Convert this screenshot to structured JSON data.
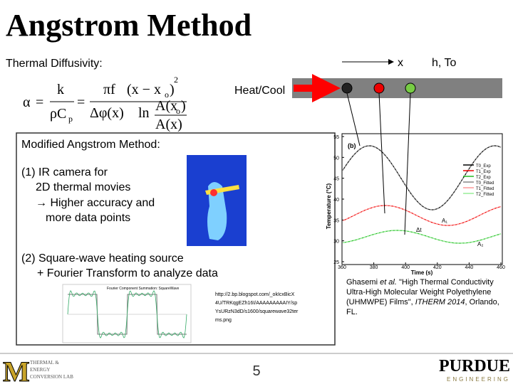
{
  "title": "Angstrom Method",
  "thermal_diffusivity": {
    "label": "Thermal Diffusivity:",
    "formula": {
      "alpha": "α",
      "eq1": "=",
      "k": "k",
      "rho_c": "ρC",
      "sub_p": "p",
      "eq2": "=",
      "pi_f": "πf",
      "num_x": "(x − x",
      "num_sub": "o",
      "num_close": ")",
      "num_sup": "2",
      "delta_phi": "Δφ(x)",
      "ln": "ln",
      "a_xo": "A(x",
      "a_sub": "o",
      "a_close": ")",
      "a_x": "A(x)"
    }
  },
  "diagram": {
    "x_label": "x",
    "boundary_label": "h, To",
    "heat_label": "Heat/Cool"
  },
  "box": {
    "heading": "Modified Angstrom Method:",
    "point1": [
      "(1) IR camera for",
      "2D thermal movies",
      "→ Higher accuracy and",
      "more data points"
    ],
    "point2": [
      "(2) Square-wave heating source",
      "+ Fourier Transform to analyze data"
    ],
    "fourier_title": "Fourier Component Summation: SquareWave",
    "url": [
      "http://2.bp.blogspot.com/_okIcxBicX",
      "4U/TRKqgEZh16I/AAAAAAAAAIY/sp",
      "YsURzN3dD/s1600/squarewave32ter",
      "ms.png"
    ]
  },
  "plot": {
    "panel": "(b)",
    "y_label": "Temperature (°C)",
    "x_label": "Time (s)",
    "yticks": [
      "55",
      "50",
      "45",
      "40",
      "35",
      "30",
      "25"
    ],
    "xticks": [
      "360",
      "380",
      "400",
      "420",
      "440",
      "460"
    ],
    "legend": [
      "T0_Exp",
      "T1_Exp",
      "T2_Exp",
      "T0_Fitted",
      "T1_Fitted",
      "T2_Fitted"
    ],
    "annotations": {
      "a1": "A₁",
      "dt": "Δt",
      "a2": "A₂"
    }
  },
  "citation": {
    "author": "Ghasemi ",
    "etal": "et al.",
    "rest": " \"High Thermal Conductivity Ultra-High Molecular Weight Polyethylene (UHMWPE) Films\", ",
    "venue": "ITHERM 2014",
    "place": ", Orlando, FL."
  },
  "footer": {
    "page": "5",
    "logo_letter": "M",
    "lab": [
      "THERMAL &",
      "ENERGY",
      "CONVERSION LAB"
    ],
    "purdue": "PURDUE",
    "engineering": "ENGINEERING"
  }
}
